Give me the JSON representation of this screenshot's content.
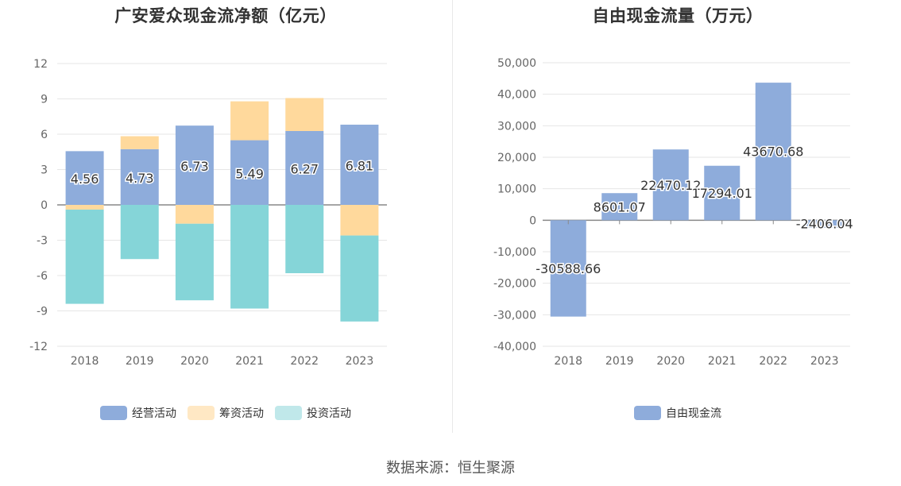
{
  "footer": {
    "source": "数据来源：恒生聚源"
  },
  "chart_data": [
    {
      "type": "bar",
      "stacked": true,
      "title": "广安爱众现金流净额（亿元）",
      "categories": [
        "2018",
        "2019",
        "2020",
        "2021",
        "2022",
        "2023"
      ],
      "ylim": [
        -12,
        12
      ],
      "yticks": [
        12,
        9,
        6,
        3,
        0,
        -3,
        -6,
        -9,
        -12
      ],
      "grid": true,
      "legend_position": "bottom",
      "series": [
        {
          "name": "经营活动",
          "color": "#8eacdb",
          "values": [
            4.56,
            4.73,
            6.73,
            5.49,
            6.27,
            6.81
          ],
          "labels": [
            "4.56",
            "4.73",
            "6.73",
            "5.49",
            "6.27",
            "6.81"
          ]
        },
        {
          "name": "筹资活动",
          "color": "#ffd99c",
          "values": [
            -0.4,
            1.1,
            -1.6,
            3.3,
            2.8,
            -2.6
          ]
        },
        {
          "name": "投资活动",
          "color": "#85d5d8",
          "values": [
            -8.0,
            -4.6,
            -6.5,
            -8.8,
            -5.8,
            -7.3
          ]
        }
      ],
      "legend_colors": {
        "经营活动": "#8eacdb",
        "筹资活动": "#ffe8c4",
        "投资活动": "#c0e8ea"
      }
    },
    {
      "type": "bar",
      "title": "自由现金流量（万元）",
      "categories": [
        "2018",
        "2019",
        "2020",
        "2021",
        "2022",
        "2023"
      ],
      "ylim": [
        -40000,
        50000
      ],
      "yticks": [
        "50,000",
        "40,000",
        "30,000",
        "20,000",
        "10,000",
        "0",
        "-10,000",
        "-20,000",
        "-30,000",
        "-40,000"
      ],
      "grid": true,
      "legend_position": "bottom",
      "series": [
        {
          "name": "自由现金流",
          "color": "#8eacdb",
          "values": [
            -30588.66,
            8601.07,
            22470.12,
            17294.01,
            43670.68,
            -2406.04
          ],
          "labels": [
            "-30588.66",
            "8601.07",
            "22470.12",
            "17294.01",
            "43670.68",
            "-2406.04"
          ]
        }
      ]
    }
  ]
}
